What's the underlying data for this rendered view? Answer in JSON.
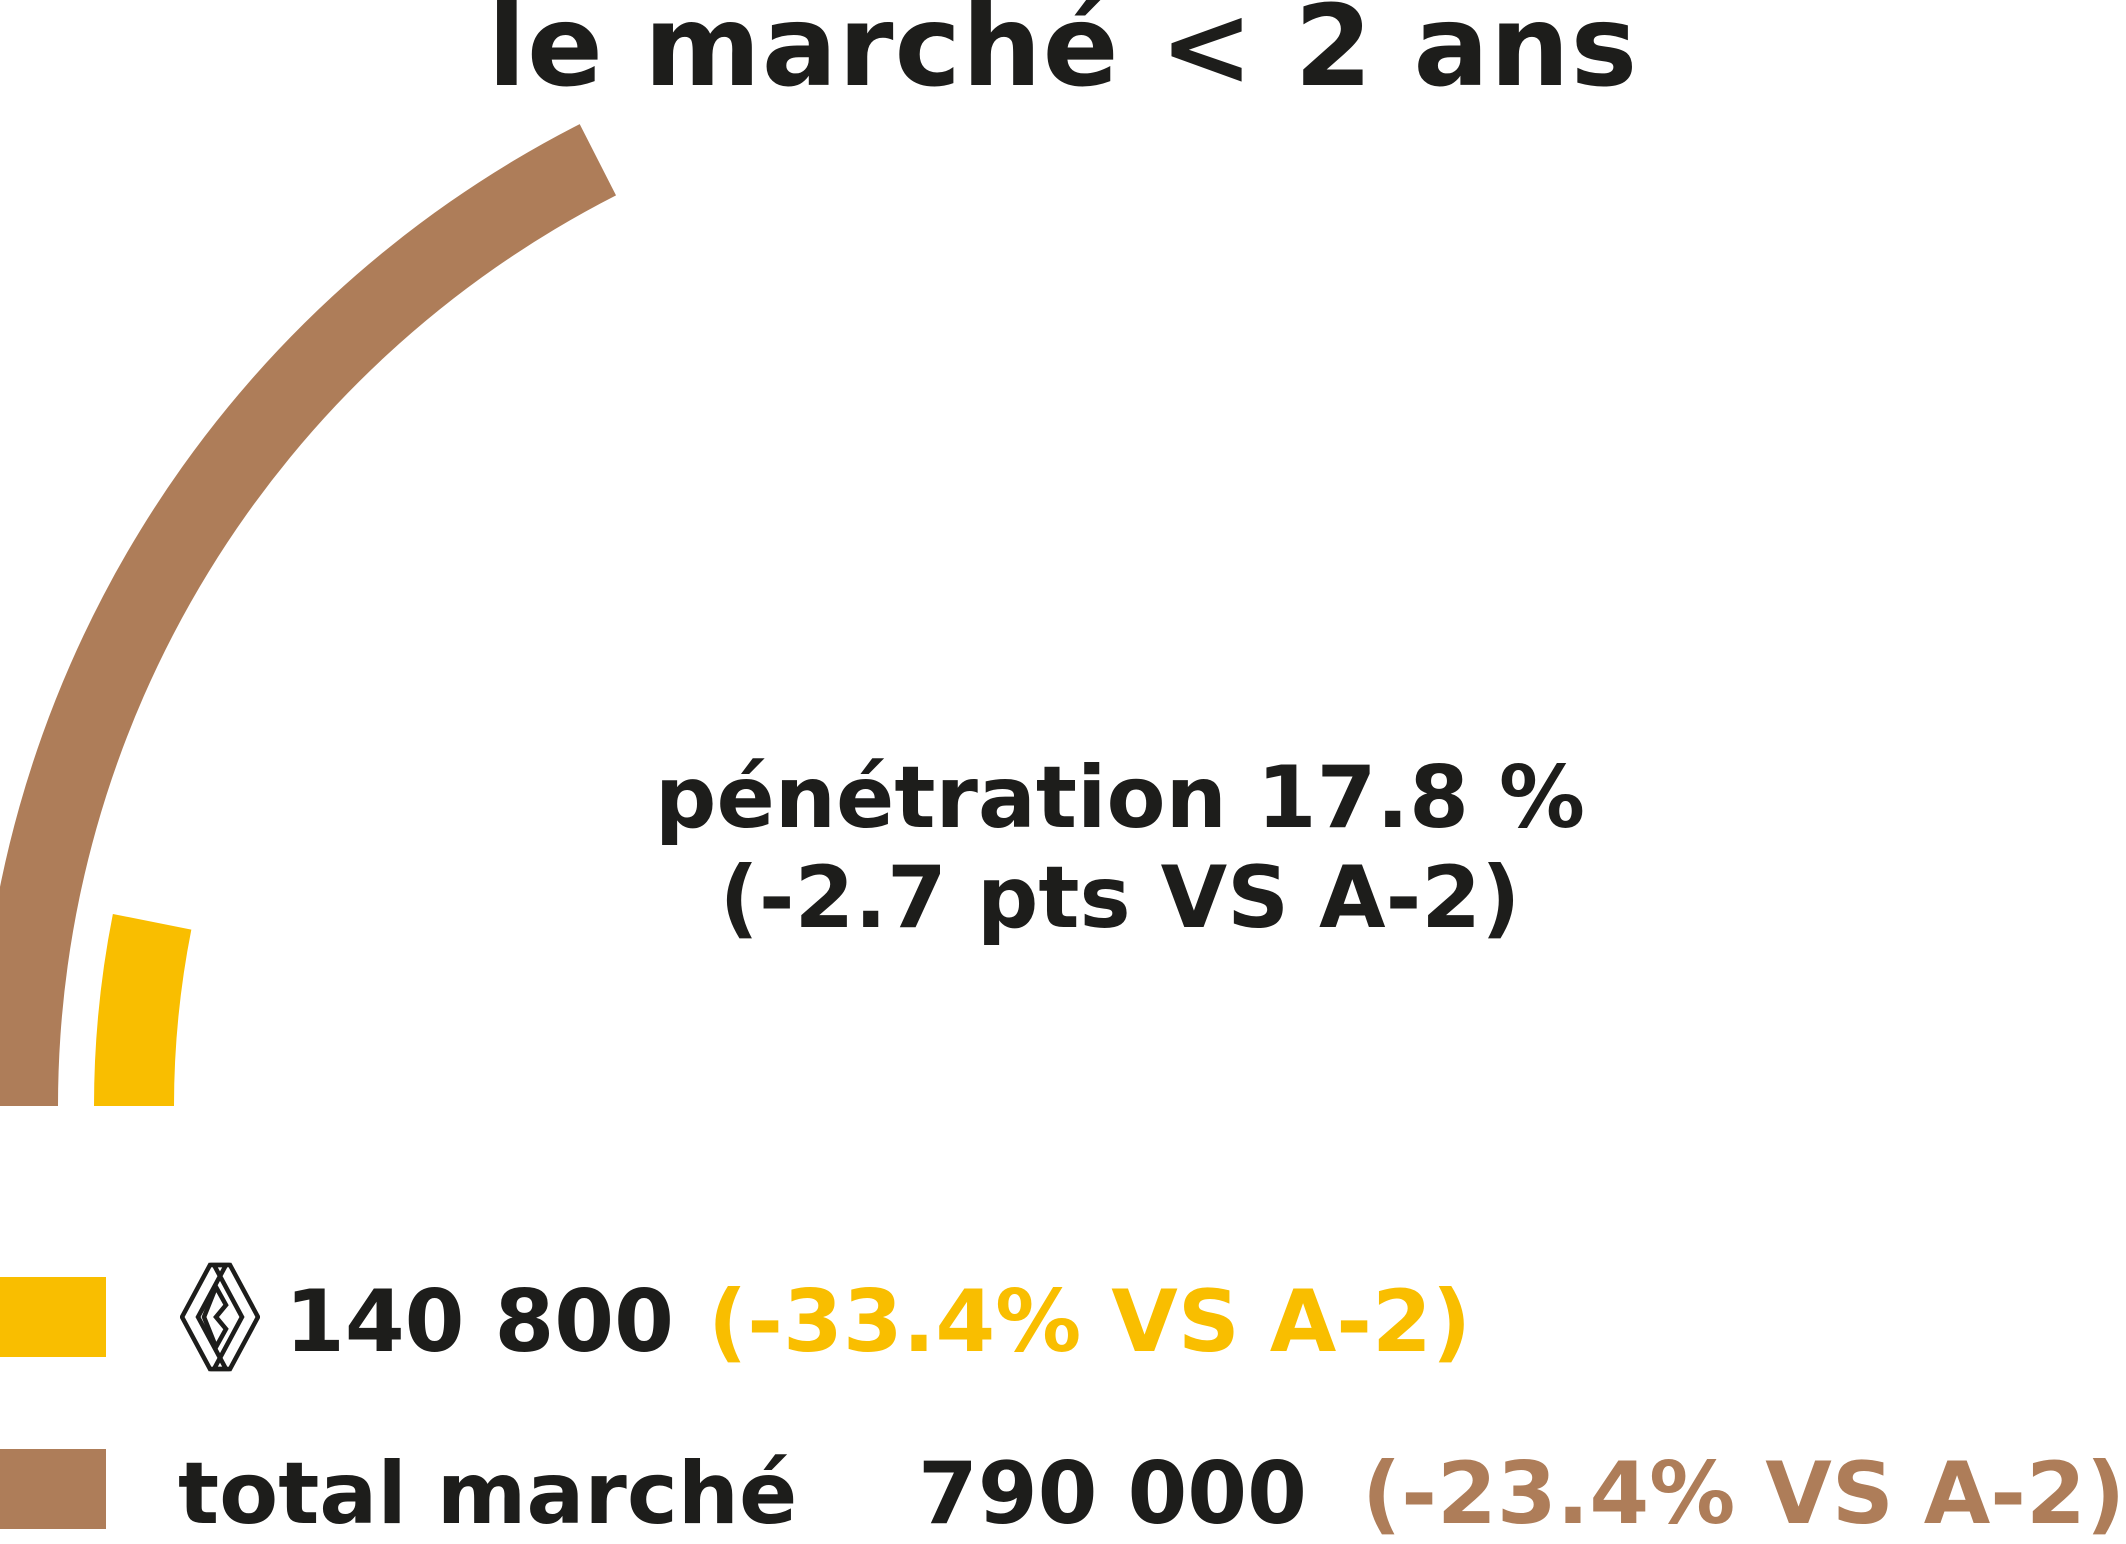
{
  "colors": {
    "renault": "#f9be00",
    "total": "#ae7d59",
    "text": "#1d1d1b"
  },
  "title": "le marché < 2 ans",
  "center_label": {
    "line1": "pénétration 17.8 %",
    "line2": "(-2.7 pts VS A-2)"
  },
  "legend": {
    "renault": {
      "icon": "renault-logo-icon",
      "value": "140 800",
      "change": "(-33.4% VS A-2)"
    },
    "total": {
      "label": "total marché",
      "value": "790 000",
      "change": "(-23.4% VS A-2)"
    }
  },
  "chart_data": {
    "type": "radial-bar",
    "title": "le marché < 2 ans",
    "series": [
      {
        "name": "total marché",
        "value": 790000,
        "change_pct": -23.4,
        "color": "#ae7d59"
      },
      {
        "name": "Renault",
        "value": 140800,
        "change_pct": -33.4,
        "color": "#f9be00"
      }
    ],
    "penetration_pct": 17.8,
    "penetration_change_pts": -2.7,
    "comparison": "VS A-2"
  }
}
